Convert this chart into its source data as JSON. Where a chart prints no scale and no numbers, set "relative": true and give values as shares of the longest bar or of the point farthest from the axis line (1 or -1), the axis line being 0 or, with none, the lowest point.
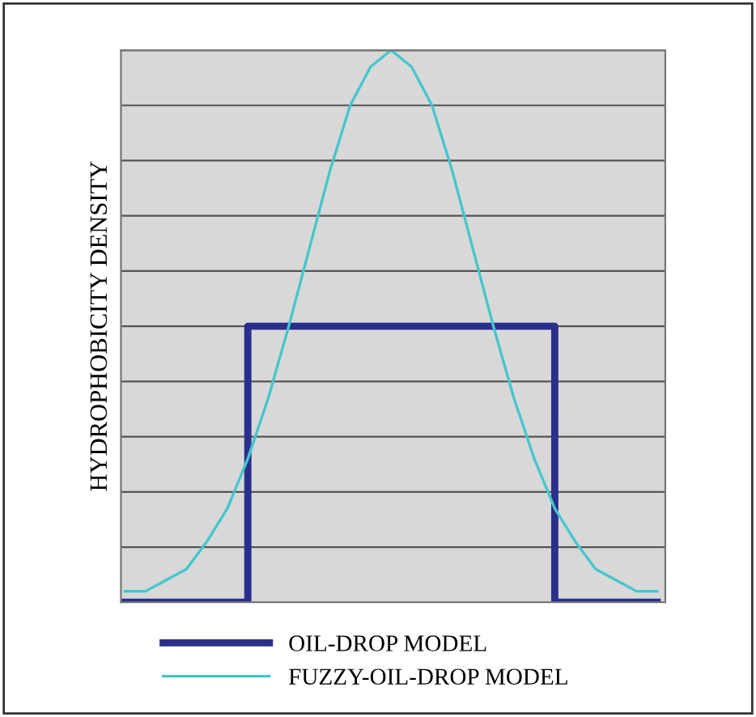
{
  "chart_data": {
    "type": "line",
    "ylabel": "HYDROPHOBICITY DENSITY",
    "relative": true,
    "grid": "y",
    "legend": "bottom",
    "tick_labels": false,
    "marker": "none",
    "line_style": "solid",
    "categories": [
      null,
      null,
      null,
      null,
      null,
      null,
      null,
      null,
      null,
      null,
      null,
      null,
      null,
      null,
      null,
      null,
      null,
      null,
      null,
      null,
      null,
      null,
      null,
      null,
      null,
      null,
      null
    ],
    "series": [
      {
        "name": "OIL-DROP MODEL",
        "type": "step",
        "color": "#2a2f8c",
        "values": [
          0,
          0,
          0,
          0,
          0,
          0,
          0.5,
          0.5,
          0.5,
          0.5,
          0.5,
          0.5,
          0.5,
          0.5,
          0.5,
          0.5,
          0.5,
          0.5,
          0.5,
          0.5,
          0.5,
          0,
          0,
          0,
          0,
          0,
          0
        ]
      },
      {
        "name": "FUZZY-OIL-DROP MODEL",
        "color": "#45c6cc",
        "values": [
          0.02,
          0.02,
          0.04,
          0.06,
          0.11,
          0.17,
          0.26,
          0.37,
          0.5,
          0.64,
          0.78,
          0.9,
          0.97,
          1,
          0.97,
          0.9,
          0.78,
          0.64,
          0.5,
          0.37,
          0.26,
          0.17,
          0.11,
          0.06,
          0.04,
          0.02,
          0.02
        ]
      }
    ]
  }
}
